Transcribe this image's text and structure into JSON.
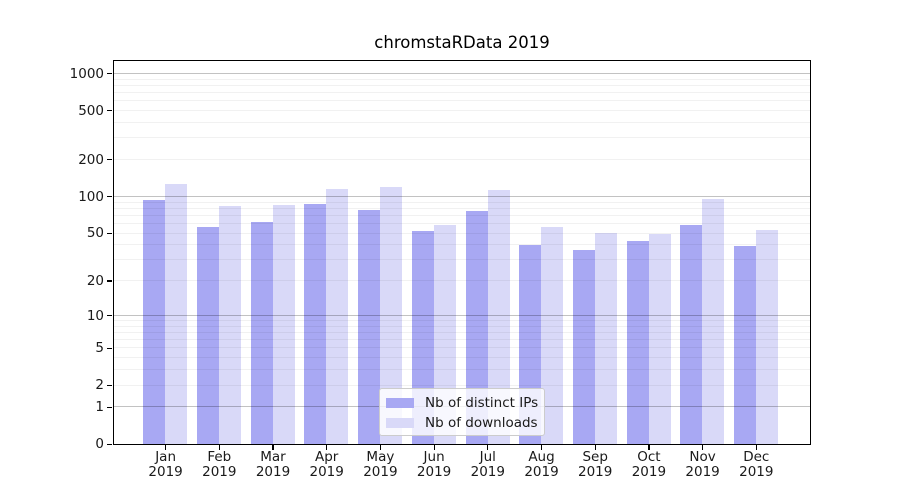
{
  "title": "chromstaRData 2019",
  "chart_data": {
    "type": "bar",
    "title": "chromstaRData 2019",
    "scale": "log10(value+1)",
    "categories": [
      "Jan 2019",
      "Feb 2019",
      "Mar 2019",
      "Apr 2019",
      "May 2019",
      "Jun 2019",
      "Jul 2019",
      "Aug 2019",
      "Sep 2019",
      "Oct 2019",
      "Nov 2019",
      "Dec 2019"
    ],
    "x_tick_months": [
      "Jan",
      "Feb",
      "Mar",
      "Apr",
      "May",
      "Jun",
      "Jul",
      "Aug",
      "Sep",
      "Oct",
      "Nov",
      "Dec"
    ],
    "x_tick_year": "2019",
    "series": [
      {
        "name": "Nb of distinct IPs",
        "color": "#a8a8f3",
        "values": [
          93,
          56,
          62,
          87,
          78,
          52,
          76,
          40,
          36,
          43,
          58,
          39
        ]
      },
      {
        "name": "Nb of downloads",
        "color": "#d9d9f8",
        "values": [
          127,
          83,
          86,
          116,
          120,
          58,
          112,
          56,
          50,
          49,
          96,
          53
        ]
      }
    ],
    "y_axis": {
      "tick_values": [
        0,
        1,
        2,
        5,
        10,
        20,
        50,
        100,
        200,
        500,
        1000
      ],
      "tick_labels": [
        "0",
        "1",
        "2",
        "5",
        "10",
        "20",
        "50",
        "100",
        "200",
        "500",
        "1000"
      ],
      "max": 1273,
      "major_grid_values": [
        1,
        10,
        100,
        1000
      ],
      "minor_grid_values": [
        2,
        3,
        4,
        5,
        6,
        7,
        8,
        9,
        20,
        30,
        40,
        50,
        60,
        70,
        80,
        90,
        200,
        300,
        400,
        500,
        600,
        700,
        800,
        900
      ]
    },
    "ylim": [
      0,
      1273
    ],
    "grid": true,
    "legend_position": "lower center"
  },
  "colors": {
    "ip_bar": "#a8a8f3",
    "dl_bar": "#d9d9f8",
    "major_grid": "rgba(0,0,0,0.24)",
    "minor_grid": "rgba(0,0,0,0.055)",
    "axis": "#000000",
    "background": "#ffffff"
  },
  "legend": {
    "items": [
      {
        "label": "Nb of distinct IPs",
        "swatch": "#a8a8f3"
      },
      {
        "label": "Nb of downloads",
        "swatch": "#d9d9f8"
      }
    ]
  }
}
